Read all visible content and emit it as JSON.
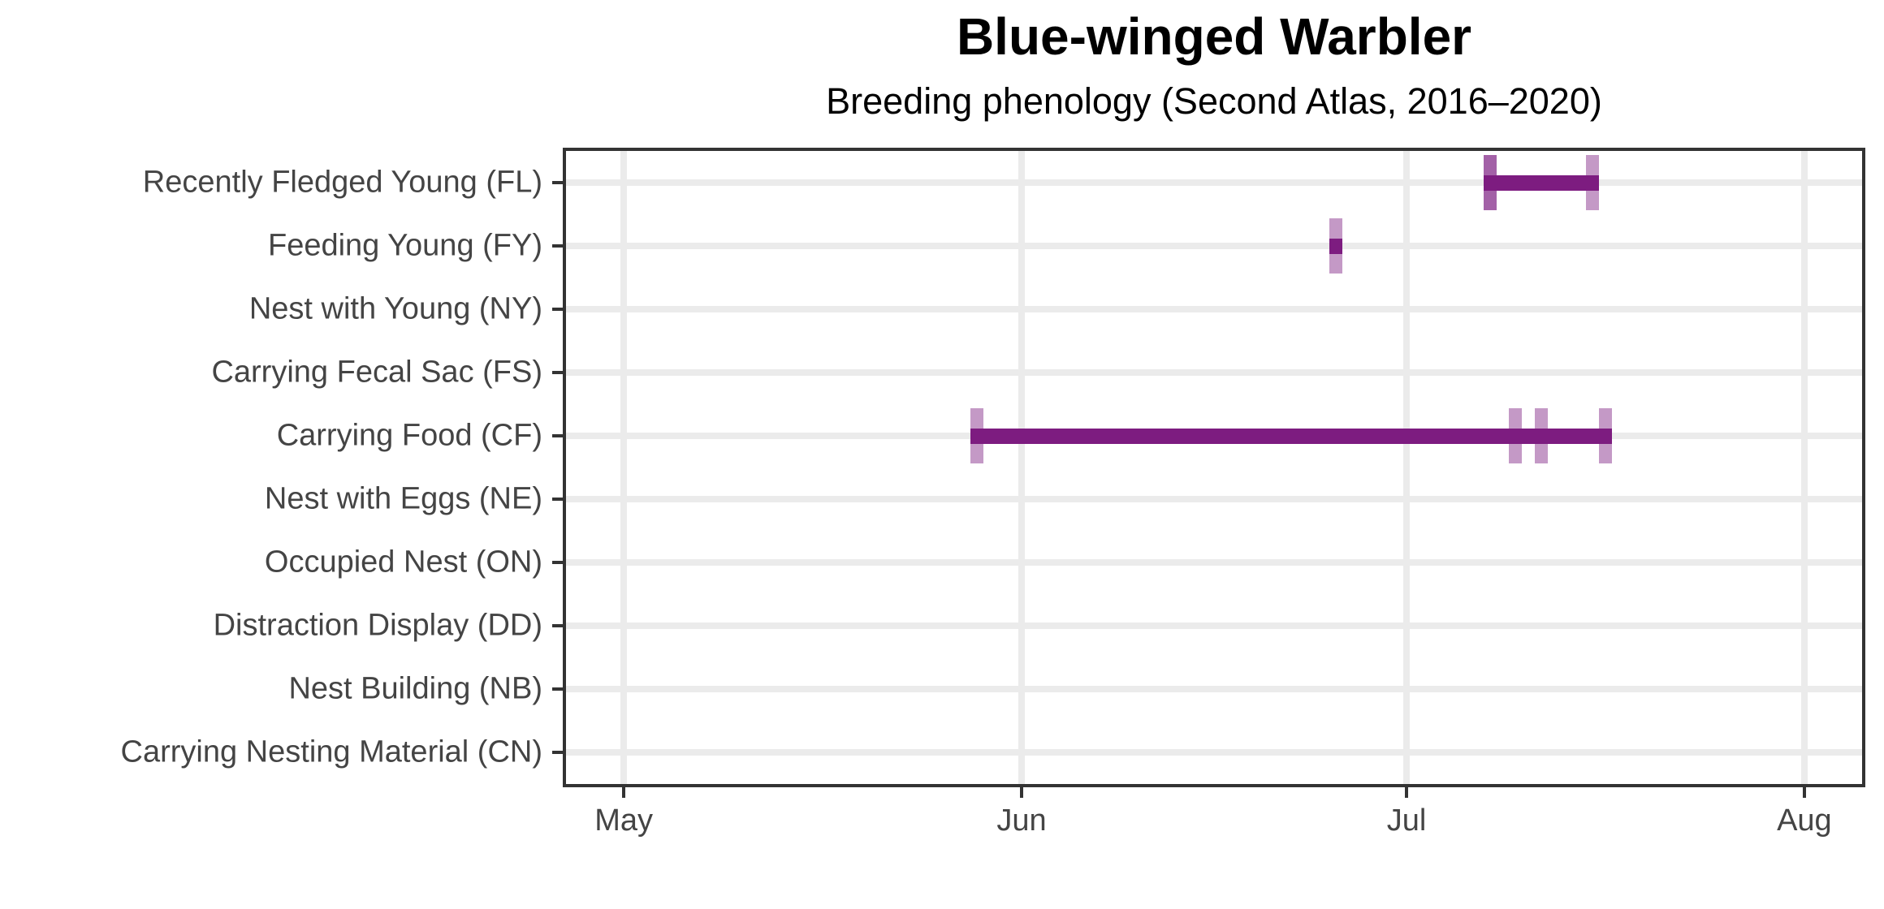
{
  "title": {
    "text": "Blue-winged Warbler"
  },
  "subtitle": {
    "text": "Breeding phenology (Second Atlas, 2016–2020)"
  },
  "colors": {
    "bar": "#7D1C80",
    "observation_tick": "#7D1C80",
    "observation_tick_opacity": 0.45,
    "gridline": "#EBEBEB",
    "panel_border": "#333333",
    "axis_tick": "#333333",
    "axis_text": "#444444",
    "title_text": "#000000"
  },
  "chart_data": {
    "type": "bar",
    "subtype": "horizontal-date-range-phenology",
    "title": "Blue-winged Warbler",
    "subtitle": "Breeding phenology (Second Atlas, 2016–2020)",
    "x_axis": {
      "tick_labels": [
        "May",
        "Jun",
        "Jul",
        "Aug"
      ],
      "range": [
        "Apr 26",
        "Aug 5"
      ],
      "grid": "major vertical gridlines at month starts only"
    },
    "y_axis_categories_top_to_bottom": [
      "Recently Fledged Young (FL)",
      "Feeding Young (FY)",
      "Nest with Young (NY)",
      "Carrying Fecal Sac (FS)",
      "Carrying Food (CF)",
      "Nest with Eggs (NE)",
      "Occupied Nest (ON)",
      "Distraction Display (DD)",
      "Nest Building (NB)",
      "Carrying Nesting Material (CN)"
    ],
    "rows": [
      {
        "label": "Recently Fledged Young (FL)",
        "code": "FL",
        "observations": [
          "Jul 7",
          "Jul 7",
          "Jul 15"
        ],
        "range": [
          "Jul 7",
          "Jul 15"
        ]
      },
      {
        "label": "Feeding Young (FY)",
        "code": "FY",
        "observations": [
          "Jun 25"
        ],
        "range": [
          "Jun 25",
          "Jun 25"
        ]
      },
      {
        "label": "Nest with Young (NY)",
        "code": "NY",
        "observations": [],
        "range": null
      },
      {
        "label": "Carrying Fecal Sac (FS)",
        "code": "FS",
        "observations": [],
        "range": null
      },
      {
        "label": "Carrying Food (CF)",
        "code": "CF",
        "observations": [
          "May 28",
          "Jul 9",
          "Jul 11",
          "Jul 16"
        ],
        "range": [
          "May 28",
          "Jul 16"
        ]
      },
      {
        "label": "Nest with Eggs (NE)",
        "code": "NE",
        "observations": [],
        "range": null
      },
      {
        "label": "Occupied Nest (ON)",
        "code": "ON",
        "observations": [],
        "range": null
      },
      {
        "label": "Distraction Display (DD)",
        "code": "DD",
        "observations": [],
        "range": null
      },
      {
        "label": "Nest Building (NB)",
        "code": "NB",
        "observations": [],
        "range": null
      },
      {
        "label": "Carrying Nesting Material (CN)",
        "code": "CN",
        "observations": [],
        "range": null
      }
    ],
    "legend": "none",
    "marks": "dark solid bar = span from first to last observed date; translucent vertical ticks = individual observation dates (overlapping ticks appear darker)"
  }
}
